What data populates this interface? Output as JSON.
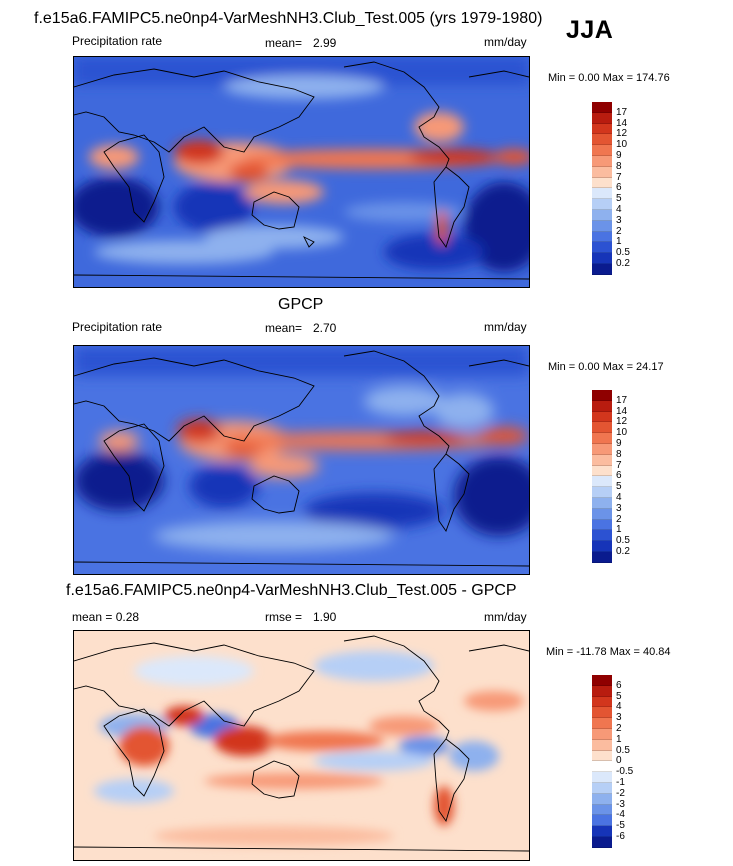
{
  "season": "JJA",
  "panels": [
    {
      "title": "f.e15a6.FAMIPC5.ne0np4-VarMeshNH3.Club_Test.005 (yrs 1979-1980)",
      "left_label": "Precipitation rate",
      "mid_label": "mean=",
      "mid_value": "2.99",
      "units": "mm/day",
      "minmax": "Min =   0.00 Max = 174.76",
      "colorbar_ticks": [
        "17",
        "14",
        "12",
        "10",
        "9",
        "8",
        "7",
        "6",
        "5",
        "4",
        "3",
        "2",
        "1",
        "0.5",
        "0.2"
      ],
      "colors": [
        "#8f0000",
        "#b81c0f",
        "#d2361d",
        "#e35532",
        "#f07650",
        "#f79977",
        "#fbbc9f",
        "#fde0cc",
        "#dbe8fb",
        "#b6cff6",
        "#8eb1ee",
        "#6b93e8",
        "#4a73e2",
        "#2c52d2",
        "#1634b8",
        "#0a1b8e"
      ]
    },
    {
      "title": "GPCP",
      "left_label": "Precipitation rate",
      "mid_label": "mean=",
      "mid_value": "2.70",
      "units": "mm/day",
      "minmax": "Min =   0.00 Max = 24.17",
      "colorbar_ticks": [
        "17",
        "14",
        "12",
        "10",
        "9",
        "8",
        "7",
        "6",
        "5",
        "4",
        "3",
        "2",
        "1",
        "0.5",
        "0.2"
      ],
      "colors": [
        "#8f0000",
        "#b81c0f",
        "#d2361d",
        "#e35532",
        "#f07650",
        "#f79977",
        "#fbbc9f",
        "#fde0cc",
        "#dbe8fb",
        "#b6cff6",
        "#8eb1ee",
        "#6b93e8",
        "#4a73e2",
        "#2c52d2",
        "#1634b8",
        "#0a1b8e"
      ]
    },
    {
      "title": "f.e15a6.FAMIPC5.ne0np4-VarMeshNH3.Club_Test.005 - GPCP",
      "left_label": "mean =   0.28",
      "mid_label": "rmse =",
      "mid_value": "1.90",
      "units": "mm/day",
      "minmax": "Min = -11.78 Max =  40.84",
      "colorbar_ticks": [
        "6",
        "5",
        "4",
        "3",
        "2",
        "1",
        "0.5",
        "0",
        "-0.5",
        "-1",
        "-2",
        "-3",
        "-4",
        "-5",
        "-6"
      ],
      "colors": [
        "#8f0000",
        "#b81c0f",
        "#d2361d",
        "#e35532",
        "#f07650",
        "#f79977",
        "#fbbc9f",
        "#fde0cc",
        "#ffffff",
        "#dbe8fb",
        "#b6cff6",
        "#8eb1ee",
        "#6b93e8",
        "#4a73e2",
        "#1634b8",
        "#0a1b8e"
      ]
    }
  ],
  "chart_data": [
    {
      "type": "heatmap",
      "title": "f.e15a6.FAMIPC5.ne0np4-VarMeshNH3.Club_Test.005 (yrs 1979-1980)",
      "variable": "Precipitation rate",
      "units": "mm/day",
      "mean": 2.99,
      "min": 0.0,
      "max": 174.76,
      "levels": [
        0.2,
        0.5,
        1,
        2,
        3,
        4,
        5,
        6,
        7,
        8,
        9,
        10,
        12,
        14,
        17
      ]
    },
    {
      "type": "heatmap",
      "title": "GPCP",
      "variable": "Precipitation rate",
      "units": "mm/day",
      "mean": 2.7,
      "min": 0.0,
      "max": 24.17,
      "levels": [
        0.2,
        0.5,
        1,
        2,
        3,
        4,
        5,
        6,
        7,
        8,
        9,
        10,
        12,
        14,
        17
      ]
    },
    {
      "type": "heatmap",
      "title": "f.e15a6.FAMIPC5.ne0np4-VarMeshNH3.Club_Test.005 - GPCP",
      "units": "mm/day",
      "mean": 0.28,
      "rmse": 1.9,
      "min": -11.78,
      "max": 40.84,
      "levels": [
        -6,
        -5,
        -4,
        -3,
        -2,
        -1,
        -0.5,
        0,
        0.5,
        1,
        2,
        3,
        4,
        5,
        6
      ]
    }
  ]
}
